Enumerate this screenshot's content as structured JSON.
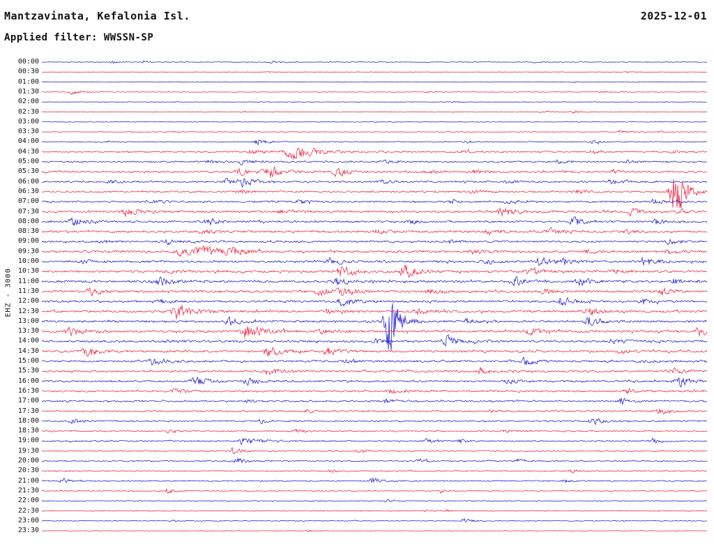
{
  "header": {
    "station": "Mantzavinata, Kefalonia Isl.",
    "date": "2025-12-01",
    "filter": "Applied filter: WWSSN-SP"
  },
  "y_axis_label": "EHZ - 3000",
  "colors": {
    "blue": "#0b0bcd",
    "red": "#ee1133",
    "text": "#111111",
    "background": "#ffffff"
  },
  "chart_data": {
    "type": "line",
    "subtype": "helicorder-seismogram",
    "station": "Mantzavinata, Kefalonia Isl.",
    "date": "2025-12-01",
    "filter": "WWSSN-SP",
    "channel_gain_label": "EHZ - 3000",
    "row_duration_minutes": 30,
    "start_time": "00:00",
    "end_time": "24:00",
    "event_format": "[position_fraction_of_row, peak_half_amplitude_px, width_px]",
    "rows": [
      {
        "time": "00:00",
        "color": "blue",
        "noise": 0.5,
        "events": [
          [
            0.105,
            2,
            5
          ],
          [
            0.152,
            1.8,
            4
          ],
          [
            0.346,
            2.5,
            5
          ],
          [
            0.74,
            1.2,
            4
          ]
        ]
      },
      {
        "time": "00:30",
        "color": "red",
        "noise": 0.4,
        "events": [
          [
            0.34,
            1,
            4
          ],
          [
            0.881,
            1.5,
            4
          ]
        ]
      },
      {
        "time": "01:00",
        "color": "blue",
        "noise": 0.45,
        "events": [
          [
            0.45,
            1,
            4
          ],
          [
            0.797,
            1.6,
            4
          ]
        ]
      },
      {
        "time": "01:30",
        "color": "red",
        "noise": 0.5,
        "events": [
          [
            0.047,
            5,
            5
          ],
          [
            0.58,
            1,
            4
          ],
          [
            0.844,
            2,
            5
          ]
        ]
      },
      {
        "time": "02:00",
        "color": "blue",
        "noise": 0.4,
        "events": [
          [
            0.62,
            1,
            4
          ]
        ]
      },
      {
        "time": "02:30",
        "color": "red",
        "noise": 0.55,
        "events": [
          [
            0.3,
            1,
            4
          ],
          [
            0.755,
            2,
            6
          ],
          [
            0.8,
            2,
            5
          ]
        ]
      },
      {
        "time": "03:00",
        "color": "blue",
        "noise": 0.4,
        "events": [
          [
            0.5,
            0.8,
            4
          ]
        ]
      },
      {
        "time": "03:30",
        "color": "red",
        "noise": 0.6,
        "events": [
          [
            0.2,
            1,
            4
          ],
          [
            0.87,
            2.5,
            5
          ],
          [
            0.93,
            2,
            4
          ]
        ]
      },
      {
        "time": "04:00",
        "color": "blue",
        "noise": 0.8,
        "events": [
          [
            0.1,
            1.5,
            4
          ],
          [
            0.325,
            6,
            6
          ],
          [
            0.639,
            2,
            5
          ],
          [
            0.828,
            2.5,
            5
          ]
        ]
      },
      {
        "time": "04:30",
        "color": "red",
        "noise": 1.3,
        "events": [
          [
            0.315,
            4,
            6
          ],
          [
            0.377,
            16,
            12
          ],
          [
            0.63,
            2.5,
            6
          ],
          [
            0.83,
            3,
            6
          ],
          [
            0.95,
            2,
            5
          ]
        ]
      },
      {
        "time": "05:00",
        "color": "blue",
        "noise": 1.3,
        "events": [
          [
            0.252,
            3,
            6
          ],
          [
            0.299,
            4,
            6
          ],
          [
            0.514,
            3,
            6
          ],
          [
            0.776,
            3.5,
            6
          ],
          [
            0.88,
            2.5,
            5
          ]
        ]
      },
      {
        "time": "05:30",
        "color": "red",
        "noise": 1.5,
        "events": [
          [
            0.299,
            8,
            7
          ],
          [
            0.341,
            12,
            8
          ],
          [
            0.445,
            8,
            8
          ],
          [
            0.58,
            3,
            8
          ],
          [
            0.65,
            3,
            6
          ],
          [
            0.86,
            2.5,
            6
          ]
        ]
      },
      {
        "time": "06:00",
        "color": "blue",
        "noise": 1.5,
        "events": [
          [
            0.105,
            3,
            6
          ],
          [
            0.278,
            5,
            6
          ],
          [
            0.304,
            10,
            7
          ],
          [
            0.51,
            3,
            6
          ],
          [
            0.7,
            3,
            6
          ],
          [
            0.854,
            4.5,
            6
          ]
        ]
      },
      {
        "time": "06:30",
        "color": "red",
        "noise": 1.5,
        "events": [
          [
            0.3,
            3,
            6
          ],
          [
            0.65,
            3.5,
            6
          ],
          [
            0.807,
            3.5,
            6
          ],
          [
            0.954,
            55,
            9
          ]
        ]
      },
      {
        "time": "07:00",
        "color": "blue",
        "noise": 1.5,
        "events": [
          [
            0.17,
            3,
            6
          ],
          [
            0.388,
            4,
            6
          ],
          [
            0.618,
            4,
            6
          ],
          [
            0.7,
            4,
            7
          ],
          [
            0.92,
            4.5,
            6
          ]
        ]
      },
      {
        "time": "07:30",
        "color": "red",
        "noise": 1.7,
        "events": [
          [
            0.126,
            8,
            8
          ],
          [
            0.356,
            3.5,
            6
          ],
          [
            0.692,
            8,
            8
          ],
          [
            0.886,
            6,
            6
          ],
          [
            0.96,
            4,
            5
          ]
        ]
      },
      {
        "time": "08:00",
        "color": "blue",
        "noise": 1.7,
        "events": [
          [
            0.047,
            8,
            7
          ],
          [
            0.252,
            6,
            7
          ],
          [
            0.556,
            3.5,
            6
          ],
          [
            0.8,
            8,
            7
          ],
          [
            0.922,
            4.5,
            6
          ]
        ]
      },
      {
        "time": "08:30",
        "color": "red",
        "noise": 1.8,
        "events": [
          [
            0.241,
            4,
            7
          ],
          [
            0.503,
            4,
            7
          ],
          [
            0.671,
            4.5,
            7
          ],
          [
            0.765,
            5,
            7
          ],
          [
            0.88,
            3.5,
            6
          ]
        ]
      },
      {
        "time": "09:00",
        "color": "blue",
        "noise": 1.6,
        "events": [
          [
            0.094,
            3,
            6
          ],
          [
            0.189,
            5,
            6
          ],
          [
            0.613,
            4,
            6
          ],
          [
            0.943,
            6,
            6
          ]
        ]
      },
      {
        "time": "09:30",
        "color": "red",
        "noise": 1.8,
        "events": [
          [
            0.21,
            7,
            10
          ],
          [
            0.241,
            9,
            10
          ],
          [
            0.283,
            7,
            9
          ],
          [
            0.65,
            4,
            7
          ],
          [
            0.818,
            4,
            6
          ],
          [
            0.943,
            4.5,
            6
          ]
        ]
      },
      {
        "time": "10:00",
        "color": "blue",
        "noise": 1.8,
        "events": [
          [
            0.063,
            3,
            6
          ],
          [
            0.435,
            7,
            7
          ],
          [
            0.671,
            4,
            7
          ],
          [
            0.749,
            8,
            7
          ],
          [
            0.786,
            5,
            6
          ],
          [
            0.907,
            9,
            7
          ]
        ]
      },
      {
        "time": "10:30",
        "color": "red",
        "noise": 1.9,
        "events": [
          [
            0.19,
            3.5,
            6
          ],
          [
            0.451,
            10,
            8
          ],
          [
            0.545,
            12,
            8
          ],
          [
            0.734,
            8,
            7
          ],
          [
            0.86,
            4,
            6
          ]
        ]
      },
      {
        "time": "11:00",
        "color": "blue",
        "noise": 1.9,
        "events": [
          [
            0.178,
            8,
            7
          ],
          [
            0.445,
            8,
            7
          ],
          [
            0.713,
            8,
            7
          ],
          [
            0.812,
            8,
            7
          ],
          [
            0.949,
            7,
            6
          ]
        ]
      },
      {
        "time": "11:30",
        "color": "red",
        "noise": 1.9,
        "events": [
          [
            0.073,
            7,
            7
          ],
          [
            0.419,
            7,
            7
          ],
          [
            0.451,
            8,
            7
          ],
          [
            0.582,
            5,
            6
          ],
          [
            0.755,
            5,
            6
          ],
          [
            0.933,
            6,
            6
          ]
        ]
      },
      {
        "time": "12:00",
        "color": "blue",
        "noise": 1.8,
        "events": [
          [
            0.178,
            3.5,
            6
          ],
          [
            0.451,
            9,
            7
          ],
          [
            0.781,
            8,
            7
          ],
          [
            0.901,
            6,
            6
          ]
        ]
      },
      {
        "time": "12:30",
        "color": "red",
        "noise": 1.9,
        "events": [
          [
            0.204,
            13,
            10
          ],
          [
            0.43,
            4,
            6
          ],
          [
            0.566,
            6,
            7
          ],
          [
            0.823,
            8,
            7
          ]
        ]
      },
      {
        "time": "13:00",
        "color": "blue",
        "noise": 1.9,
        "events": [
          [
            0.283,
            7,
            7
          ],
          [
            0.524,
            60,
            9
          ],
          [
            0.64,
            4.5,
            6
          ],
          [
            0.823,
            10,
            8
          ]
        ]
      },
      {
        "time": "13:30",
        "color": "red",
        "noise": 1.9,
        "events": [
          [
            0.042,
            8,
            7
          ],
          [
            0.309,
            14,
            9
          ],
          [
            0.419,
            4.5,
            6
          ],
          [
            0.734,
            6,
            7
          ],
          [
            0.99,
            10,
            8
          ]
        ]
      },
      {
        "time": "14:00",
        "color": "blue",
        "noise": 1.8,
        "events": [
          [
            0.189,
            4,
            6
          ],
          [
            0.503,
            4,
            6
          ],
          [
            0.608,
            10,
            8
          ],
          [
            0.86,
            4.5,
            6
          ]
        ]
      },
      {
        "time": "14:30",
        "color": "red",
        "noise": 1.8,
        "events": [
          [
            0.068,
            9,
            7
          ],
          [
            0.341,
            11,
            8
          ],
          [
            0.43,
            7,
            7
          ],
          [
            0.87,
            3.5,
            6
          ]
        ]
      },
      {
        "time": "15:00",
        "color": "blue",
        "noise": 1.7,
        "events": [
          [
            0.168,
            7,
            7
          ],
          [
            0.461,
            4,
            6
          ],
          [
            0.728,
            7,
            7
          ],
          [
            0.9,
            3.5,
            6
          ]
        ]
      },
      {
        "time": "15:30",
        "color": "red",
        "noise": 1.6,
        "events": [
          [
            0.341,
            8,
            7
          ],
          [
            0.66,
            6,
            6
          ],
          [
            0.949,
            7,
            6
          ]
        ]
      },
      {
        "time": "16:00",
        "color": "blue",
        "noise": 1.6,
        "events": [
          [
            0.231,
            8,
            7
          ],
          [
            0.309,
            8,
            7
          ],
          [
            0.702,
            5,
            6
          ],
          [
            0.959,
            10,
            8
          ]
        ]
      },
      {
        "time": "16:30",
        "color": "red",
        "noise": 1.5,
        "events": [
          [
            0.199,
            4,
            6
          ],
          [
            0.524,
            5,
            6
          ],
          [
            0.881,
            5,
            6
          ]
        ]
      },
      {
        "time": "17:00",
        "color": "blue",
        "noise": 1.4,
        "events": [
          [
            0.31,
            3,
            5
          ],
          [
            0.514,
            5,
            6
          ],
          [
            0.87,
            7,
            6
          ]
        ]
      },
      {
        "time": "17:30",
        "color": "red",
        "noise": 1.3,
        "events": [
          [
            0.398,
            3,
            5
          ],
          [
            0.671,
            3,
            5
          ],
          [
            0.928,
            7,
            6
          ]
        ]
      },
      {
        "time": "18:00",
        "color": "blue",
        "noise": 1.2,
        "events": [
          [
            0.047,
            5,
            6
          ],
          [
            0.33,
            4,
            5
          ],
          [
            0.828,
            7,
            6
          ]
        ]
      },
      {
        "time": "18:30",
        "color": "red",
        "noise": 1.1,
        "events": [
          [
            0.189,
            3,
            5
          ],
          [
            0.383,
            3.5,
            5
          ],
          [
            0.697,
            3,
            5
          ]
        ]
      },
      {
        "time": "19:00",
        "color": "blue",
        "noise": 1.2,
        "events": [
          [
            0.304,
            8,
            7
          ],
          [
            0.577,
            4,
            5
          ],
          [
            0.629,
            4,
            5
          ],
          [
            0.917,
            5,
            5
          ]
        ]
      },
      {
        "time": "19:30",
        "color": "red",
        "noise": 1.0,
        "events": [
          [
            0.288,
            6,
            6
          ],
          [
            0.477,
            3,
            5
          ]
        ]
      },
      {
        "time": "20:00",
        "color": "blue",
        "noise": 1.0,
        "events": [
          [
            0.293,
            6,
            6
          ],
          [
            0.566,
            4,
            5
          ],
          [
            0.713,
            5,
            5
          ]
        ]
      },
      {
        "time": "20:30",
        "color": "red",
        "noise": 0.9,
        "events": [
          [
            0.435,
            3,
            5
          ],
          [
            0.797,
            3,
            5
          ]
        ]
      },
      {
        "time": "21:00",
        "color": "blue",
        "noise": 0.9,
        "events": [
          [
            0.031,
            5,
            5
          ],
          [
            0.498,
            6,
            6
          ],
          [
            0.786,
            3,
            5
          ]
        ]
      },
      {
        "time": "21:30",
        "color": "red",
        "noise": 0.8,
        "events": [
          [
            0.189,
            5,
            5
          ],
          [
            0.6,
            2,
            4
          ]
        ]
      },
      {
        "time": "22:00",
        "color": "blue",
        "noise": 0.6,
        "events": [
          [
            0.519,
            3,
            4
          ]
        ]
      },
      {
        "time": "22:30",
        "color": "red",
        "noise": 0.7,
        "events": [
          [
            0.577,
            2.5,
            4
          ],
          [
            0.608,
            2.5,
            4
          ]
        ]
      },
      {
        "time": "23:00",
        "color": "blue",
        "noise": 0.7,
        "events": [
          [
            0.2,
            1.5,
            4
          ],
          [
            0.634,
            5,
            5
          ]
        ]
      },
      {
        "time": "23:30",
        "color": "red",
        "noise": 0.5,
        "events": [
          [
            0.4,
            1.5,
            4
          ]
        ]
      }
    ]
  }
}
